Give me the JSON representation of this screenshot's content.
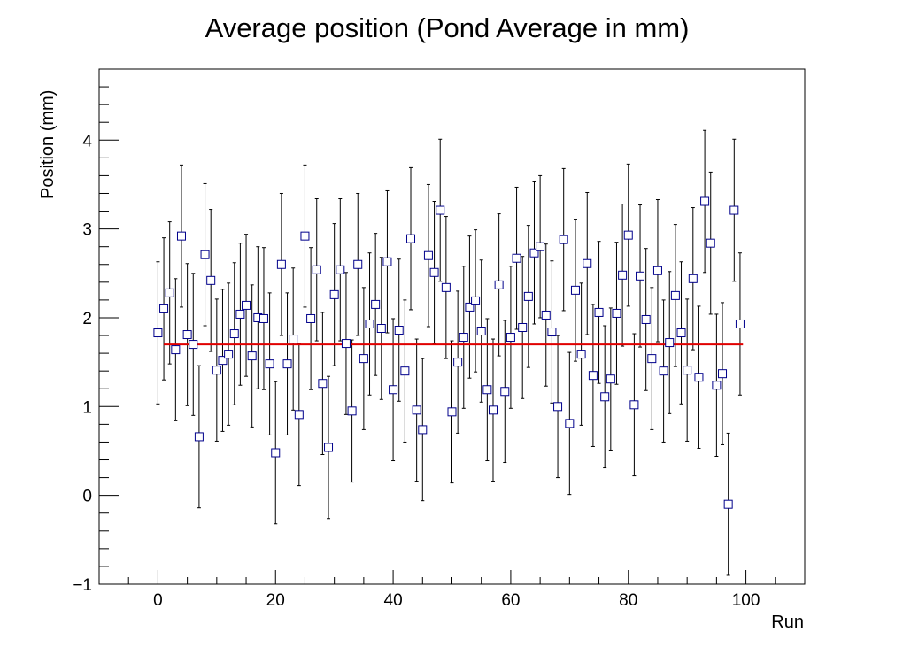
{
  "chart_data": {
    "type": "scatter",
    "title": "Average position (Pond Average in mm)",
    "xlabel": "Run",
    "ylabel": "Position (mm)",
    "xlim": [
      -10,
      110
    ],
    "ylim": [
      -1,
      4.8
    ],
    "xticks": [
      0,
      20,
      40,
      60,
      80,
      100
    ],
    "xtick_labels": [
      "0",
      "20",
      "40",
      "60",
      "80",
      "100"
    ],
    "yticks": [
      -1,
      0,
      1,
      2,
      3,
      4
    ],
    "ytick_labels": [
      "−1",
      "0",
      "1",
      "2",
      "3",
      "4"
    ],
    "grid": false,
    "legend": "none",
    "colors": {
      "marker": "#00008b",
      "error_bar": "#000000",
      "fit": "#e00000",
      "frame": "#000000"
    },
    "series": [
      {
        "marker": "open-square",
        "x": [
          0,
          1,
          2,
          3,
          4,
          5,
          6,
          7,
          8,
          9,
          10,
          11,
          12,
          13,
          14,
          15,
          16,
          17,
          18,
          19,
          20,
          21,
          22,
          23,
          24,
          25,
          26,
          27,
          28,
          29,
          30,
          31,
          32,
          33,
          34,
          35,
          36,
          37,
          38,
          39,
          40,
          41,
          42,
          43,
          44,
          45,
          46,
          47,
          48,
          49,
          50,
          51,
          52,
          53,
          54,
          55,
          56,
          57,
          58,
          59,
          60,
          61,
          62,
          63,
          64,
          65,
          66,
          67,
          68,
          69,
          70,
          71,
          72,
          73,
          74,
          75,
          76,
          77,
          78,
          79,
          80,
          81,
          82,
          83,
          84,
          85,
          86,
          87,
          88,
          89,
          90,
          91,
          92,
          93,
          94,
          95,
          96,
          97,
          98,
          99
        ],
        "y": [
          1.83,
          2.1,
          2.28,
          1.64,
          2.92,
          1.81,
          1.7,
          0.66,
          2.71,
          2.42,
          1.41,
          1.52,
          1.59,
          1.82,
          2.04,
          2.14,
          1.57,
          2.0,
          1.99,
          1.48,
          0.48,
          2.6,
          1.48,
          1.76,
          0.91,
          2.92,
          1.99,
          2.54,
          1.26,
          0.54,
          2.26,
          2.54,
          1.71,
          0.95,
          2.6,
          1.54,
          1.93,
          2.15,
          1.88,
          2.63,
          1.19,
          1.86,
          1.4,
          2.89,
          0.96,
          0.74,
          2.7,
          2.51,
          3.21,
          2.34,
          0.94,
          1.5,
          1.78,
          2.12,
          2.19,
          1.85,
          1.19,
          0.96,
          2.37,
          1.17,
          1.78,
          2.67,
          1.89,
          2.24,
          2.73,
          2.8,
          2.03,
          1.84,
          1.0,
          2.88,
          0.81,
          2.31,
          1.59,
          2.61,
          1.35,
          2.06,
          1.11,
          1.31,
          2.05,
          2.48,
          2.93,
          1.02,
          2.47,
          1.98,
          1.54,
          2.53,
          1.4,
          1.72,
          2.25,
          1.83,
          1.41,
          2.44,
          1.33,
          3.31,
          2.84,
          1.24,
          1.37,
          -0.1,
          3.21,
          1.93
        ],
        "yerr": 0.8
      }
    ],
    "fit_line": {
      "x": [
        1,
        99.5
      ],
      "y": 1.7
    }
  }
}
